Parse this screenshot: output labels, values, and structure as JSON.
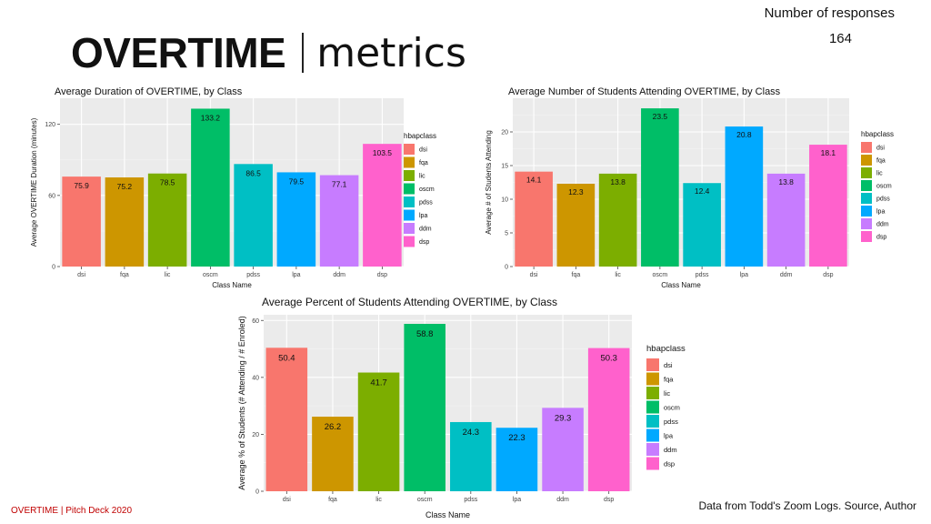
{
  "slide": {
    "title_bold": "OVERTIME",
    "title_light": "metrics",
    "responses_label": "Number of responses",
    "responses_value": "164",
    "footer_left": "OVERTIME |  Pitch Deck 2020",
    "footer_right": "Data from Todd's Zoom Logs. Source, Author"
  },
  "legend_colors": {
    "dsi": "#F8766D",
    "fqa": "#CD9600",
    "lic": "#7CAE00",
    "oscm": "#00BE67",
    "pdss": "#00BFC4",
    "lpa": "#00A9FF",
    "ddm": "#C77CFF",
    "dsp": "#FF61CC"
  },
  "chart_data": [
    {
      "type": "bar",
      "title": "Average Duration of OVERTIME, by Class",
      "xlabel": "Class Name",
      "ylabel": "Average OVERTIME Duration (minutes)",
      "categories": [
        "dsi",
        "fqa",
        "lic",
        "oscm",
        "pdss",
        "lpa",
        "ddm",
        "dsp"
      ],
      "values": [
        75.9,
        75.2,
        78.5,
        133.2,
        86.5,
        79.5,
        77.1,
        103.5
      ],
      "labels": [
        "75.9",
        "75.2",
        "78.5",
        "133.2",
        "86.5",
        "79.5",
        "77.1",
        "103.5"
      ],
      "ylim": [
        0,
        142
      ],
      "yticks": [
        0,
        60,
        120
      ],
      "legend_title": "hbapclass",
      "legend_position": "right"
    },
    {
      "type": "bar",
      "title": "Average Number of Students Attending OVERTIME, by Class",
      "xlabel": "Class Name",
      "ylabel": "Average # of Students Attending",
      "categories": [
        "dsi",
        "fqa",
        "lic",
        "oscm",
        "pdss",
        "lpa",
        "ddm",
        "dsp"
      ],
      "values": [
        14.1,
        12.3,
        13.8,
        23.5,
        12.4,
        20.8,
        13.8,
        18.1
      ],
      "labels": [
        "14.1",
        "12.3",
        "13.8",
        "23.5",
        "12.4",
        "20.8",
        "13.8",
        "18.1"
      ],
      "ylim": [
        0,
        25
      ],
      "yticks": [
        0,
        5,
        10,
        15,
        20
      ],
      "legend_title": "hbapclass",
      "legend_position": "right"
    },
    {
      "type": "bar",
      "title": "Average Percent of Students Attending OVERTIME, by Class",
      "xlabel": "Class Name",
      "ylabel": "Average % of Students (# Attending / # Enroled)",
      "categories": [
        "dsi",
        "fqa",
        "lic",
        "oscm",
        "pdss",
        "lpa",
        "ddm",
        "dsp"
      ],
      "values": [
        50.4,
        26.2,
        41.7,
        58.8,
        24.3,
        22.3,
        29.3,
        50.3
      ],
      "labels": [
        "50.4",
        "26.2",
        "41.7",
        "58.8",
        "24.3",
        "22.3",
        "29.3",
        "50.3"
      ],
      "ylim": [
        0,
        62
      ],
      "yticks": [
        0,
        20,
        40,
        60
      ],
      "legend_title": "hbapclass",
      "legend_position": "right"
    }
  ]
}
